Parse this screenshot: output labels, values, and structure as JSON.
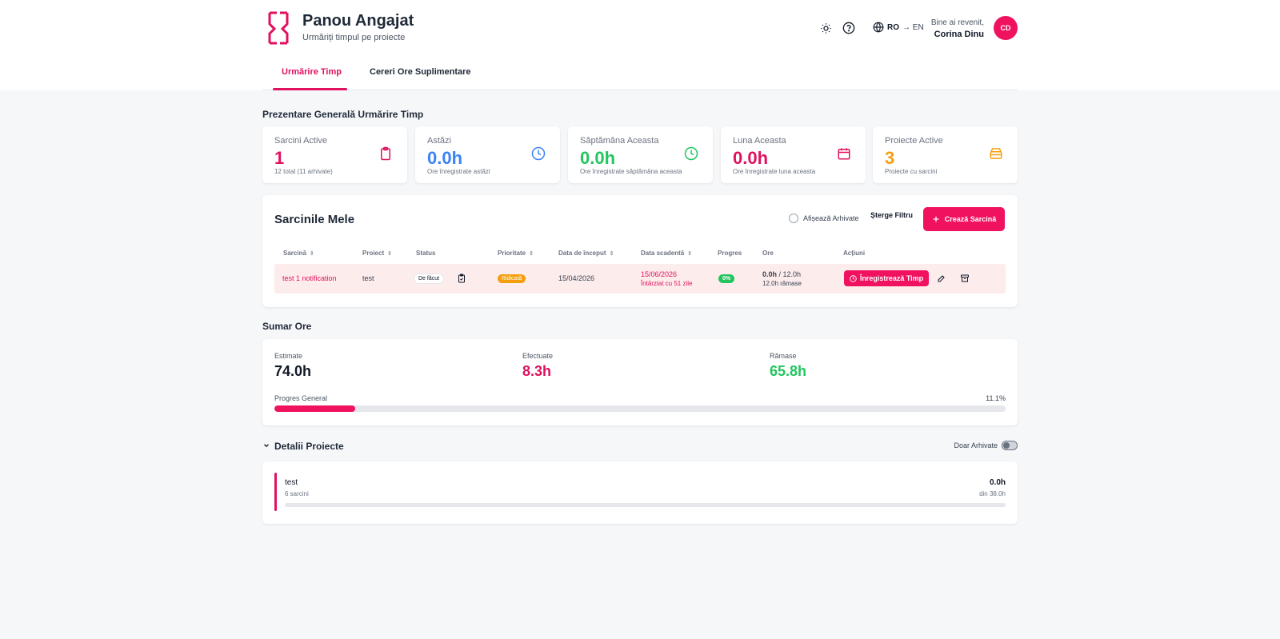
{
  "header": {
    "title": "Panou Angajat",
    "subtitle": "Urmăriți timpul pe proiecte",
    "lang_current": "RO",
    "lang_other": "→ EN",
    "welcome": "Bine ai revenit,",
    "user_name": "Corina Dinu",
    "avatar_initials": "CD",
    "accent_color": "#f0115f"
  },
  "tabs": [
    {
      "label": "Urmărire Timp",
      "active": true
    },
    {
      "label": "Cereri Ore Suplimentare",
      "active": false
    }
  ],
  "overview": {
    "title": "Prezentare Generală Urmărire Timp",
    "cards": [
      {
        "label": "Sarcini Active",
        "value": "1",
        "note": "12 total (11 arhivate)",
        "color": "#e0115f",
        "icon": "clipboard-icon"
      },
      {
        "label": "Astăzi",
        "value": "0.0h",
        "note": "Ore înregistrate astăzi",
        "color": "#3b82f6",
        "icon": "clock-icon"
      },
      {
        "label": "Săptămâna Aceasta",
        "value": "0.0h",
        "note": "Ore înregistrate săptămâna aceasta",
        "color": "#22c55e",
        "icon": "clock-icon"
      },
      {
        "label": "Luna Aceasta",
        "value": "0.0h",
        "note": "Ore înregistrate luna aceasta",
        "color": "#e0115f",
        "icon": "calendar-icon"
      },
      {
        "label": "Proiecte Active",
        "value": "3",
        "note": "Proiecte cu sarcini",
        "color": "#f59e0b",
        "icon": "folder-icon"
      }
    ]
  },
  "tasks": {
    "title": "Sarcinile Mele",
    "show_archived": "Afișează Arhivate",
    "clear_filter": "Șterge Filtru",
    "create": "Crează Sarcină",
    "columns": [
      "Sarcină",
      "Proiect",
      "Status",
      "Prioritate",
      "Data de început",
      "Data scadentă",
      "Progres",
      "Ore",
      "Acțiuni"
    ],
    "rows": [
      {
        "task": "test 1 notification",
        "project": "test",
        "status": "De făcut",
        "priority": "Ridicată",
        "start": "15/04/2026",
        "due": "15/06/2026",
        "late": "Întârziat cu 51 zile",
        "progress": "0%",
        "hours_done": "0.0h",
        "hours_total": "/ 12.0h",
        "hours_left": "12.0h rămase",
        "record": "Înregistrează Timp"
      }
    ]
  },
  "summary": {
    "title": "Sumar Ore",
    "estimated_label": "Estimate",
    "estimated": "74.0h",
    "done_label": "Efectuate",
    "done": "8.3h",
    "left_label": "Rămase",
    "left": "65.8h",
    "progress_label": "Progres General",
    "progress_text": "11.1%",
    "progress_value": 0.111
  },
  "details": {
    "title": "Detalii Proiecte",
    "archived_only": "Doar Arhivate",
    "projects": [
      {
        "name": "test",
        "tasks": "6 sarcini",
        "hours": "0.0h",
        "of": "din 38.0h",
        "progress_value": 0.0
      }
    ]
  }
}
